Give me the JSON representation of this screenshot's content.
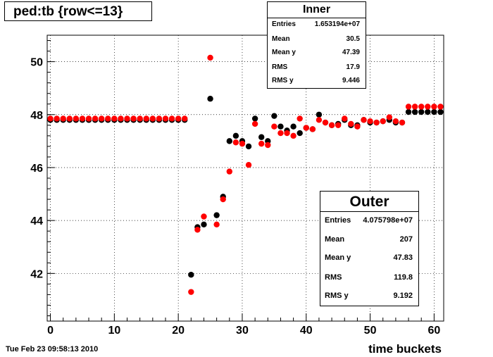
{
  "title": "ped:tb {row<=13}",
  "timestamp": "Tue Feb 23 09:58:13 2010",
  "inner_stats": {
    "header": "Inner",
    "rows": [
      {
        "key": "Entries",
        "value": "1.653194e+07"
      },
      {
        "key": "Mean",
        "value": "30.5"
      },
      {
        "key": "Mean y",
        "value": "47.39"
      },
      {
        "key": "RMS",
        "value": "17.9"
      },
      {
        "key": "RMS y",
        "value": "9.446"
      }
    ]
  },
  "outer_stats": {
    "header": "Outer",
    "rows": [
      {
        "key": "Entries",
        "value": "4.075798e+07"
      },
      {
        "key": "Mean",
        "value": "207"
      },
      {
        "key": "Mean y",
        "value": "47.83"
      },
      {
        "key": "RMS",
        "value": "119.8"
      },
      {
        "key": "RMS y",
        "value": "9.192"
      }
    ]
  },
  "chart_data": {
    "type": "scatter",
    "title": "ped:tb {row<=13}",
    "xlabel": "time buckets",
    "ylabel": "",
    "xlim": [
      -0.5,
      61.5
    ],
    "ylim": [
      40.2,
      51.0
    ],
    "x_ticks": [
      0,
      10,
      20,
      30,
      40,
      50,
      60
    ],
    "y_ticks": [
      42,
      44,
      46,
      48,
      50
    ],
    "grid": true,
    "colors": {
      "Inner": "#000000",
      "Outer": "#ff0000"
    },
    "series": [
      {
        "name": "Inner",
        "x": [
          0,
          1,
          2,
          3,
          4,
          5,
          6,
          7,
          8,
          9,
          10,
          11,
          12,
          13,
          14,
          15,
          16,
          17,
          18,
          19,
          20,
          21,
          22,
          23,
          24,
          25,
          26,
          27,
          28,
          29,
          30,
          31,
          32,
          33,
          34,
          35,
          36,
          37,
          38,
          39,
          40,
          41,
          42,
          43,
          44,
          45,
          46,
          47,
          48,
          49,
          50,
          51,
          52,
          53,
          54,
          55,
          56,
          57,
          58,
          59,
          60,
          61
        ],
        "y": [
          47.8,
          47.8,
          47.8,
          47.8,
          47.8,
          47.8,
          47.8,
          47.8,
          47.8,
          47.8,
          47.8,
          47.8,
          47.8,
          47.8,
          47.8,
          47.8,
          47.8,
          47.8,
          47.8,
          47.8,
          47.8,
          47.8,
          41.95,
          43.75,
          43.85,
          48.6,
          44.2,
          44.9,
          47.0,
          47.2,
          47.0,
          46.8,
          47.85,
          47.15,
          47.0,
          47.95,
          47.55,
          47.4,
          47.55,
          47.3,
          47.5,
          47.45,
          48.0,
          47.7,
          47.6,
          47.65,
          47.8,
          47.6,
          47.6,
          47.8,
          47.7,
          47.7,
          47.75,
          47.8,
          47.7,
          47.7,
          48.1,
          48.1,
          48.1,
          48.1,
          48.1,
          48.1
        ]
      },
      {
        "name": "Outer",
        "x": [
          0,
          1,
          2,
          3,
          4,
          5,
          6,
          7,
          8,
          9,
          10,
          11,
          12,
          13,
          14,
          15,
          16,
          17,
          18,
          19,
          20,
          21,
          22,
          23,
          24,
          25,
          26,
          27,
          28,
          29,
          30,
          31,
          32,
          33,
          34,
          35,
          36,
          37,
          38,
          39,
          40,
          41,
          42,
          43,
          44,
          45,
          46,
          47,
          48,
          49,
          50,
          51,
          52,
          53,
          54,
          55,
          56,
          57,
          58,
          59,
          60,
          61
        ],
        "y": [
          47.85,
          47.85,
          47.85,
          47.85,
          47.85,
          47.85,
          47.85,
          47.85,
          47.85,
          47.85,
          47.85,
          47.85,
          47.85,
          47.85,
          47.85,
          47.85,
          47.85,
          47.85,
          47.85,
          47.85,
          47.85,
          47.85,
          41.3,
          43.65,
          44.15,
          50.15,
          43.85,
          44.8,
          45.85,
          46.95,
          46.9,
          46.1,
          47.65,
          46.9,
          46.85,
          47.55,
          47.3,
          47.3,
          47.2,
          47.85,
          47.5,
          47.45,
          47.8,
          47.7,
          47.6,
          47.6,
          47.85,
          47.65,
          47.55,
          47.8,
          47.75,
          47.7,
          47.75,
          47.9,
          47.75,
          47.7,
          48.3,
          48.3,
          48.3,
          48.3,
          48.3,
          48.3
        ]
      }
    ]
  }
}
